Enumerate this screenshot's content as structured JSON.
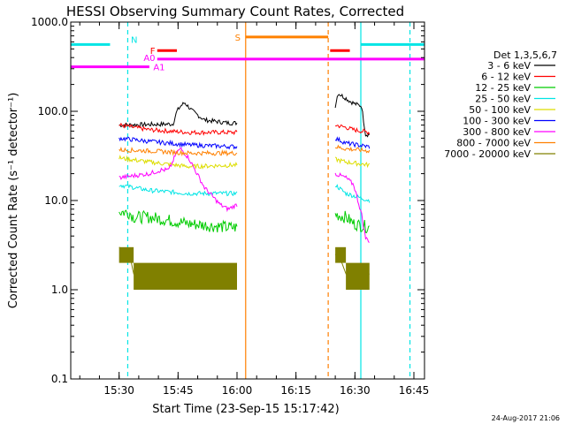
{
  "chart_data": {
    "type": "line",
    "title": "HESSI Observing Summary Count Rates, Corrected",
    "xlabel": "Start Time (23-Sep-15 15:17:42)",
    "ylabel": "Corrected Count Rate (s⁻¹ detector⁻¹)",
    "y_scale": "log",
    "ylim": [
      0.1,
      1000
    ],
    "xlim_minutes_after_start": [
      0,
      90
    ],
    "x_ticks": [
      {
        "label": "15:30",
        "min": 12.3
      },
      {
        "label": "15:45",
        "min": 27.3
      },
      {
        "label": "16:00",
        "min": 42.3
      },
      {
        "label": "16:15",
        "min": 57.3
      },
      {
        "label": "16:30",
        "min": 72.3
      },
      {
        "label": "16:45",
        "min": 87.3
      }
    ],
    "y_ticks": [
      {
        "label": "0.1",
        "v": 0.1
      },
      {
        "label": "1.0",
        "v": 1
      },
      {
        "label": "10.0",
        "v": 10
      },
      {
        "label": "100.0",
        "v": 100
      },
      {
        "label": "1000.0",
        "v": 1000
      }
    ],
    "legend_title": "Det 1,3,5,6,7",
    "series": [
      {
        "name": "3 - 6 keV",
        "color": "#000000",
        "s1": [
          [
            12.3,
            70
          ],
          [
            26,
            72
          ],
          [
            27,
            100
          ],
          [
            28,
            115
          ],
          [
            29,
            125
          ],
          [
            31,
            100
          ],
          [
            34,
            80
          ],
          [
            40,
            74
          ],
          [
            42.3,
            74
          ]
        ],
        "s2": [
          [
            67.3,
            115
          ],
          [
            68,
            160
          ],
          [
            70,
            140
          ],
          [
            71,
            130
          ],
          [
            72.5,
            120
          ],
          [
            74,
            115
          ],
          [
            75,
            55
          ],
          [
            76,
            55
          ]
        ]
      },
      {
        "name": "6 - 12 keV",
        "color": "#ff0000",
        "s1": [
          [
            12.3,
            70
          ],
          [
            20,
            62
          ],
          [
            30,
            58
          ],
          [
            42.3,
            58
          ]
        ],
        "s2": [
          [
            67.3,
            70
          ],
          [
            70,
            66
          ],
          [
            72,
            62
          ],
          [
            76,
            58
          ]
        ]
      },
      {
        "name": "12 - 25 keV",
        "color": "#00cc00",
        "s1": [
          [
            12.3,
            7.5
          ],
          [
            15,
            7.3
          ],
          [
            16,
            6.5
          ],
          [
            20,
            6.5
          ],
          [
            25,
            6
          ],
          [
            30,
            5.5
          ],
          [
            40,
            5
          ],
          [
            42.3,
            5
          ]
        ],
        "s2": [
          [
            67.3,
            7
          ],
          [
            70,
            6.5
          ],
          [
            72,
            5.5
          ],
          [
            76,
            5
          ]
        ]
      },
      {
        "name": "25 - 50 keV",
        "color": "#00e5e5",
        "s1": [
          [
            12.3,
            15
          ],
          [
            20,
            13
          ],
          [
            30,
            12
          ],
          [
            42.3,
            12
          ]
        ],
        "s2": [
          [
            67.3,
            15
          ],
          [
            70,
            12
          ],
          [
            76,
            10
          ]
        ]
      },
      {
        "name": "50 - 100 keV",
        "color": "#dddd00",
        "s1": [
          [
            12.3,
            30
          ],
          [
            20,
            27
          ],
          [
            30,
            24
          ],
          [
            42.3,
            25
          ]
        ],
        "s2": [
          [
            67.3,
            29
          ],
          [
            70,
            27
          ],
          [
            76,
            25
          ]
        ]
      },
      {
        "name": "100 - 300 keV",
        "color": "#0000ff",
        "s1": [
          [
            12.3,
            50
          ],
          [
            20,
            46
          ],
          [
            30,
            42
          ],
          [
            42.3,
            40
          ]
        ],
        "s2": [
          [
            67.3,
            50
          ],
          [
            70,
            44
          ],
          [
            76,
            40
          ]
        ]
      },
      {
        "name": "300 - 800 keV",
        "color": "#ff00ff",
        "s1": [
          [
            12.3,
            18
          ],
          [
            20,
            20
          ],
          [
            23,
            22
          ],
          [
            25,
            22
          ],
          [
            27,
            35
          ],
          [
            28,
            38
          ],
          [
            30,
            30
          ],
          [
            34,
            14
          ],
          [
            38,
            9
          ],
          [
            40,
            8
          ],
          [
            42.3,
            9
          ]
        ],
        "s2": [
          [
            67.3,
            20
          ],
          [
            70,
            18
          ],
          [
            72,
            15
          ],
          [
            74,
            7
          ],
          [
            75,
            3.8
          ],
          [
            76,
            3.5
          ]
        ]
      },
      {
        "name": "800 - 7000 keV",
        "color": "#ff8000",
        "s1": [
          [
            12.3,
            37
          ],
          [
            20,
            36
          ],
          [
            30,
            34
          ],
          [
            42.3,
            34
          ]
        ],
        "s2": [
          [
            67.3,
            40
          ],
          [
            70,
            38
          ],
          [
            76,
            36
          ]
        ]
      },
      {
        "name": "7000 - 20000 keV",
        "color": "#808000",
        "s1": [
          [
            12.3,
            3
          ],
          [
            15,
            2.5
          ],
          [
            16,
            1.5
          ],
          [
            42.3,
            1.5
          ]
        ],
        "s2": [
          [
            67.3,
            2.5
          ],
          [
            69,
            2
          ],
          [
            70,
            1.5
          ],
          [
            76,
            1.5
          ]
        ]
      }
    ],
    "flag_bars": [
      {
        "label": "N",
        "color": "#00e5e5",
        "rate": 560,
        "ranges": [
          [
            -1,
            10
          ]
        ],
        "ranges_end": [
          [
            73.8,
            90
          ]
        ]
      },
      {
        "label": "S",
        "color": "#ff8000",
        "rate": 680,
        "ranges": [
          [
            44.5,
            65.5
          ]
        ]
      },
      {
        "label": "F",
        "color": "#ff0000",
        "rate": 480,
        "ranges": [
          [
            22,
            27
          ],
          [
            66,
            71
          ]
        ]
      },
      {
        "label": "A0",
        "color": "#ff00ff",
        "rate": 385,
        "ranges": [
          [
            22,
            90
          ]
        ]
      },
      {
        "label": "A1",
        "color": "#ff00ff",
        "rate": 315,
        "ranges": [
          [
            -1,
            20
          ]
        ]
      }
    ],
    "vlines": [
      {
        "min": -1,
        "color": "#00e5e5",
        "style": "solid"
      },
      {
        "min": 14.5,
        "color": "#00e5e5",
        "style": "dashed"
      },
      {
        "min": 44.5,
        "color": "#ff8000",
        "style": "solid"
      },
      {
        "min": 65.5,
        "color": "#ff8000",
        "style": "dashed"
      },
      {
        "min": 73.8,
        "color": "#00e5e5",
        "style": "solid"
      },
      {
        "min": 86.3,
        "color": "#00e5e5",
        "style": "dashed"
      }
    ]
  },
  "timestamp": "24-Aug-2017 21:06"
}
